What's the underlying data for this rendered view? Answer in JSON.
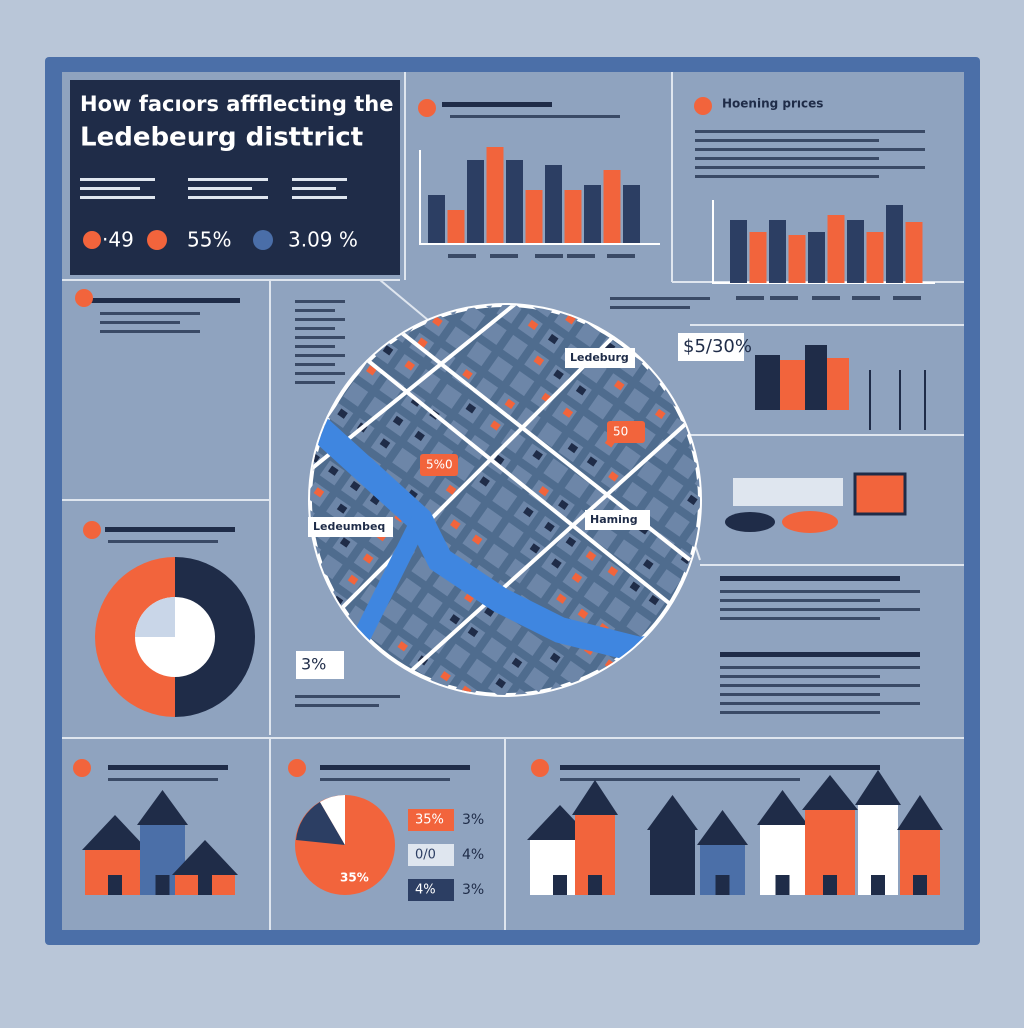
{
  "header": {
    "line1": "How facıors affflecting the",
    "line2": "Ledebeurg disttrict"
  },
  "stats": [
    "·49",
    "55%",
    "3.09 %"
  ],
  "housing_title": "Hoening prıces",
  "bar_colors": [
    "#2c3e63",
    "#f2643c"
  ],
  "top_chart": {
    "values": [
      48,
      33,
      83,
      96,
      83,
      53,
      78,
      53,
      58,
      73,
      58
    ]
  },
  "housing_chart": {
    "values": [
      63,
      51,
      63,
      48,
      51,
      68,
      63,
      51,
      78,
      61
    ]
  },
  "map_labels": [
    "Ledeburg",
    "Ledeumbeq",
    "Haming"
  ],
  "map_tags": [
    "5%0",
    "50"
  ],
  "callouts": [
    "$5/30%",
    "3%"
  ],
  "pie_legend": [
    [
      "35%",
      "3%"
    ],
    [
      "0/0",
      "4%"
    ],
    [
      "4%",
      "3%"
    ]
  ],
  "pie_label": "35%"
}
